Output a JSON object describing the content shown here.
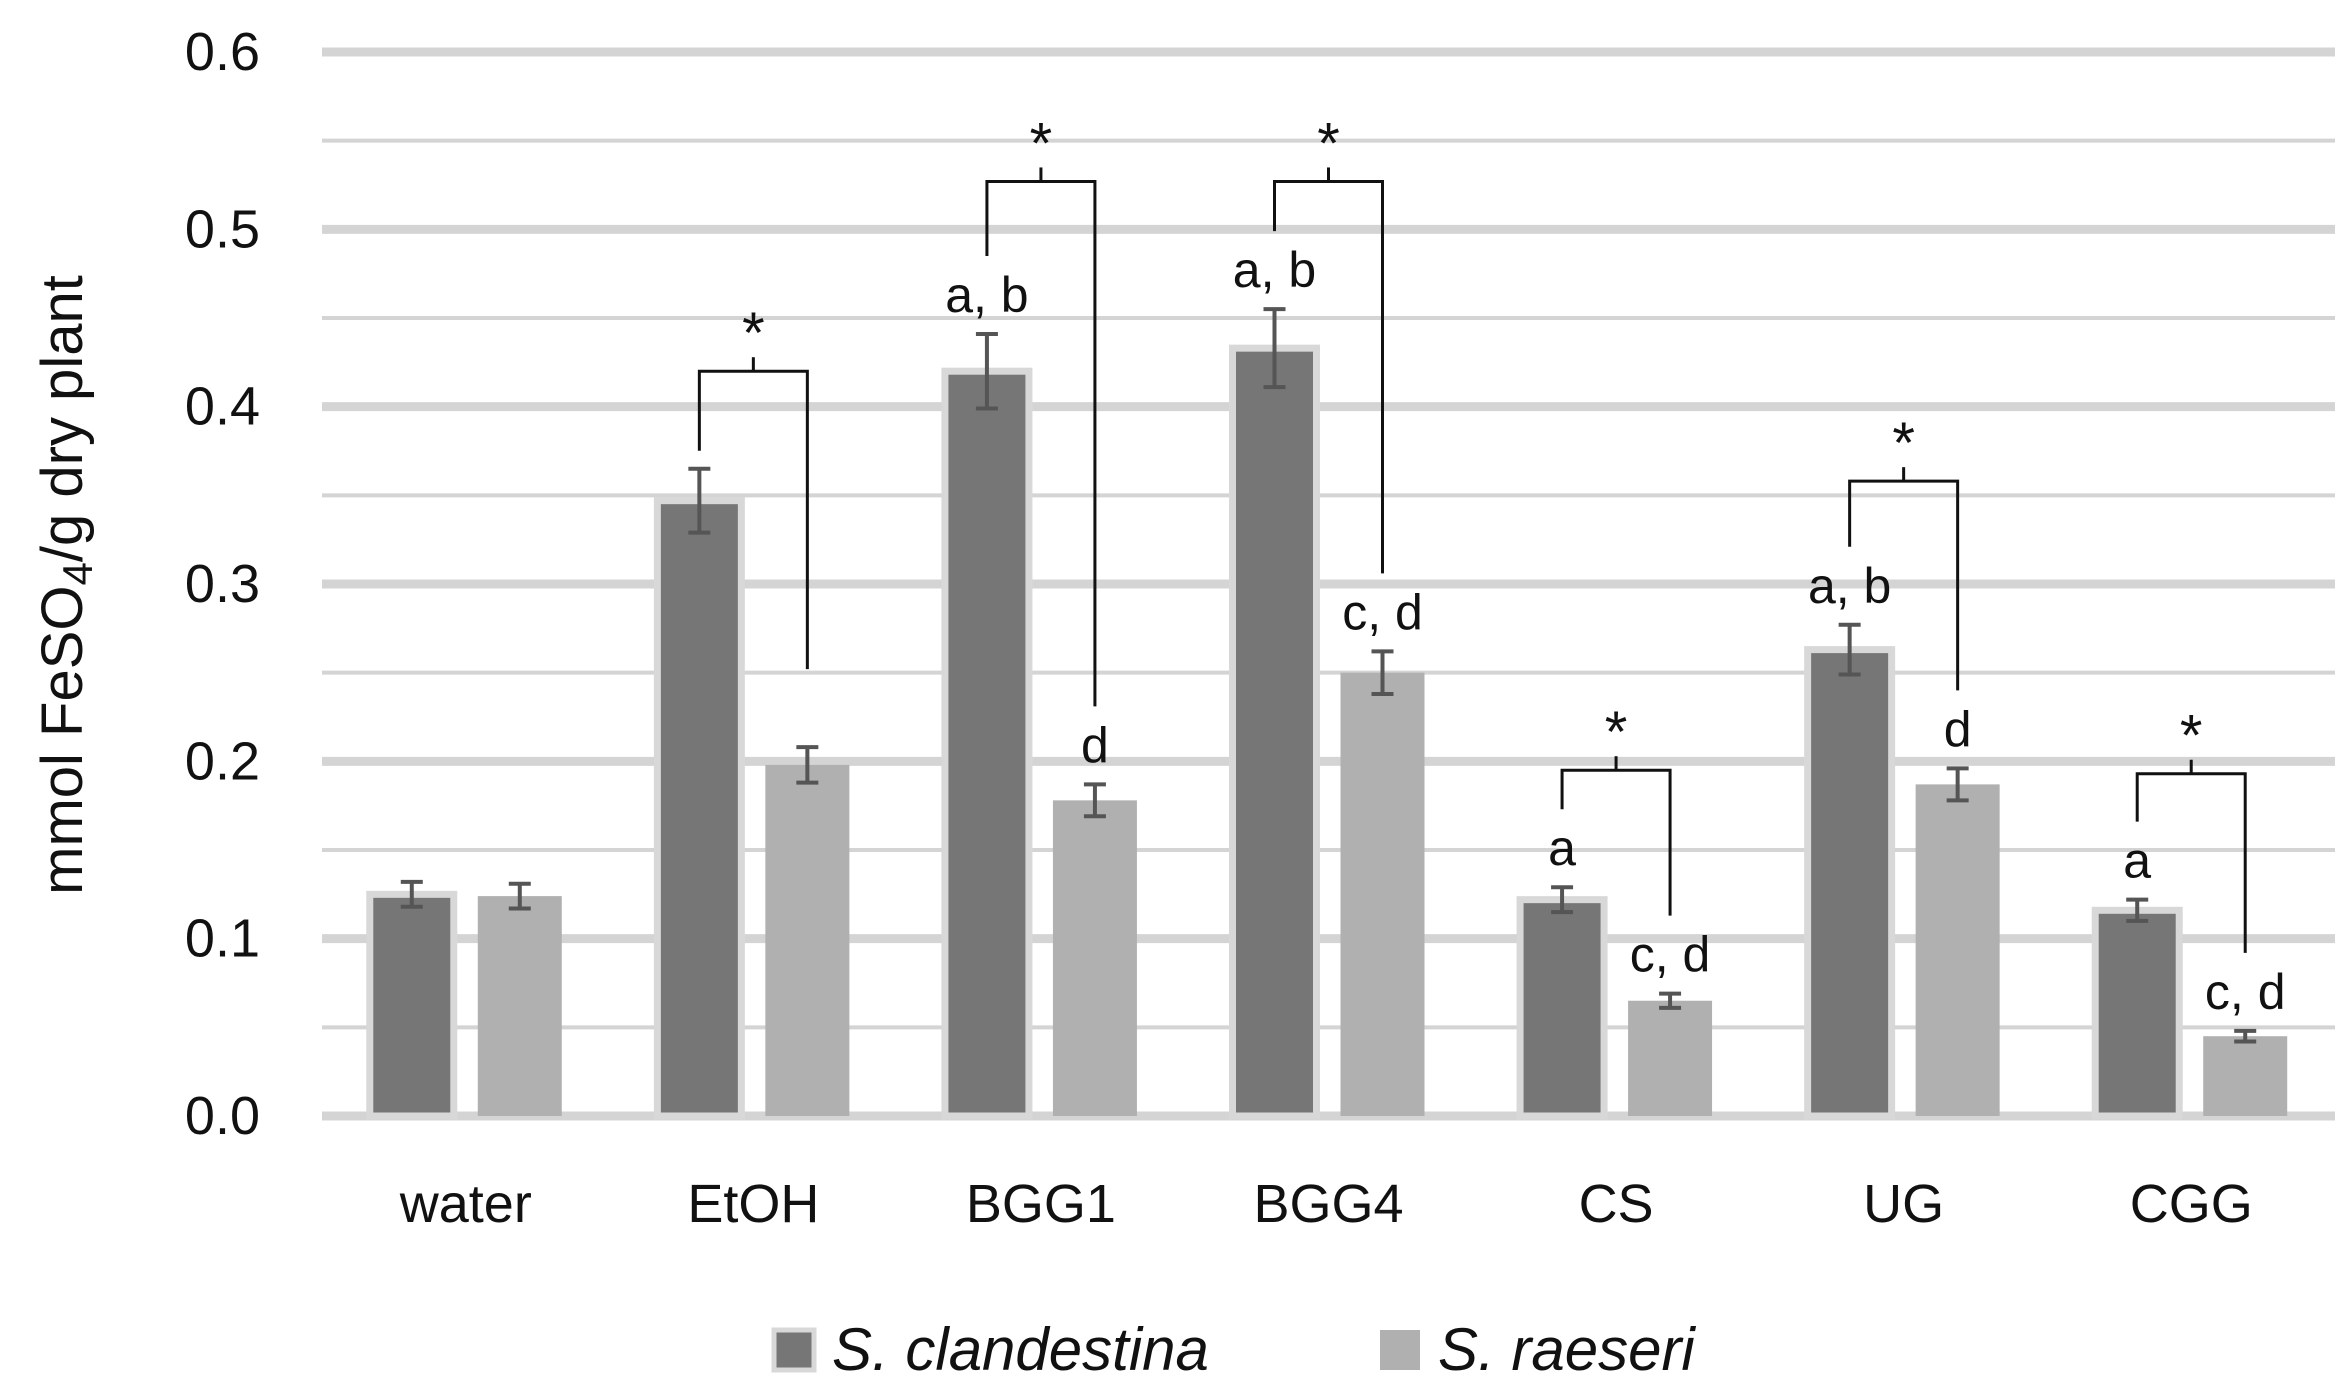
{
  "chart_data": {
    "type": "bar",
    "title": "",
    "xlabel": "",
    "ylabel": "mmol FeSO4/g dry plant",
    "ylabel_main": "mmol FeSO",
    "ylabel_sub": "4",
    "ylabel_rest": "/g dry plant",
    "ylim": [
      0,
      0.6
    ],
    "yticks": [
      0.0,
      0.1,
      0.2,
      0.3,
      0.4,
      0.5,
      0.6
    ],
    "ytick_labels": [
      "0.0",
      "0.1",
      "0.2",
      "0.3",
      "0.4",
      "0.5",
      "0.6"
    ],
    "grid": true,
    "categories": [
      "water",
      "EtOH",
      "BGG1",
      "BGG4",
      "CS",
      "UG",
      "CGG"
    ],
    "series": [
      {
        "name": "S. clandestina",
        "color": "#767676",
        "values": [
          0.125,
          0.347,
          0.42,
          0.433,
          0.122,
          0.263,
          0.116
        ],
        "errors": [
          0.007,
          0.018,
          0.021,
          0.022,
          0.007,
          0.014,
          0.006
        ],
        "letters": [
          "",
          "",
          "a, b",
          "a, b",
          "a",
          "a, b",
          "a"
        ]
      },
      {
        "name": "S. raeseri",
        "color": "#b0b0b0",
        "values": [
          0.124,
          0.198,
          0.178,
          0.25,
          0.065,
          0.187,
          0.045
        ],
        "errors": [
          0.007,
          0.01,
          0.009,
          0.012,
          0.004,
          0.009,
          0.003
        ],
        "letters": [
          "",
          "",
          "d",
          "c, d",
          "c, d",
          "d",
          "c, d"
        ]
      }
    ],
    "significance_brackets": [
      {
        "category": "EtOH",
        "label": "*",
        "level": 0.42
      },
      {
        "category": "BGG1",
        "label": "*",
        "level": 0.527
      },
      {
        "category": "BGG4",
        "label": "*",
        "level": 0.527
      },
      {
        "category": "CS",
        "label": "*",
        "level": 0.195
      },
      {
        "category": "UG",
        "label": "*",
        "level": 0.358
      },
      {
        "category": "CGG",
        "label": "*",
        "level": 0.193
      }
    ],
    "legend": {
      "placement": "bottom-center",
      "entries": [
        "S. clandestina",
        "S. raeseri"
      ]
    }
  }
}
